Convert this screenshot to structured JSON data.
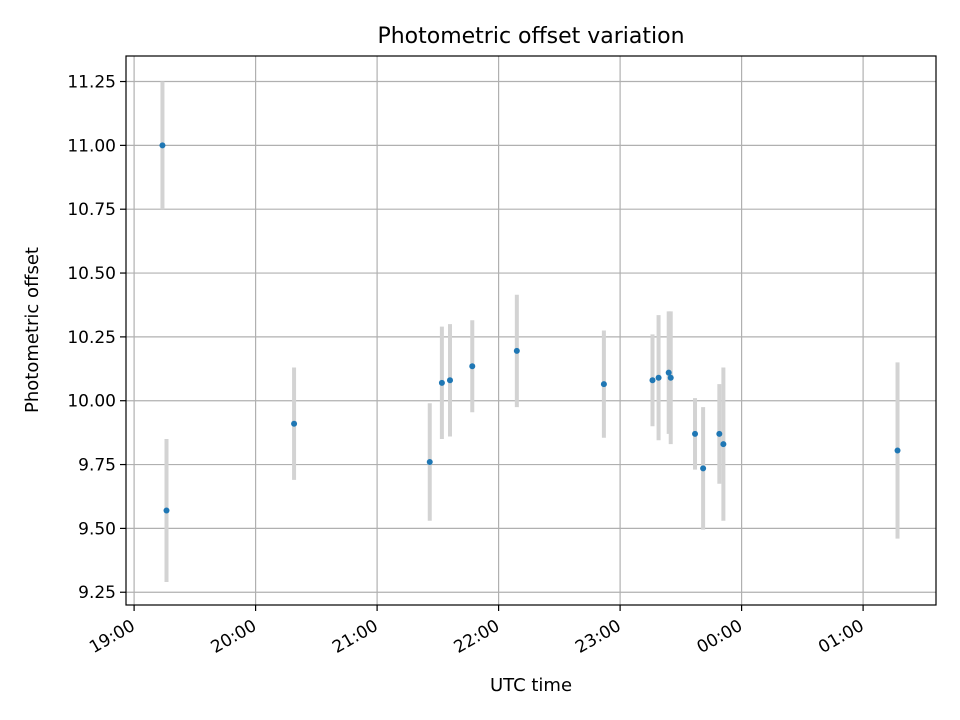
{
  "chart_data": {
    "type": "scatter",
    "title": "Photometric offset variation",
    "xlabel": "UTC time",
    "ylabel": "Photometric offset",
    "xlim": [
      "18:56",
      "01:36"
    ],
    "ylim": [
      9.2,
      11.35
    ],
    "xticks": [
      "19:00",
      "20:00",
      "21:00",
      "22:00",
      "23:00",
      "00:00",
      "01:00"
    ],
    "yticks": [
      "9.25",
      "9.50",
      "9.75",
      "10.00",
      "10.25",
      "10.50",
      "10.75",
      "11.00",
      "11.25"
    ],
    "grid": true,
    "points": [
      {
        "x": "19:14",
        "y": 11.0,
        "err": 0.25
      },
      {
        "x": "19:16",
        "y": 9.57,
        "err": 0.28
      },
      {
        "x": "20:19",
        "y": 9.91,
        "err": 0.22
      },
      {
        "x": "21:26",
        "y": 9.76,
        "err": 0.23
      },
      {
        "x": "21:32",
        "y": 10.07,
        "err": 0.22
      },
      {
        "x": "21:36",
        "y": 10.08,
        "err": 0.22
      },
      {
        "x": "21:47",
        "y": 10.135,
        "err": 0.18
      },
      {
        "x": "22:09",
        "y": 10.195,
        "err": 0.22
      },
      {
        "x": "22:52",
        "y": 10.065,
        "err": 0.21
      },
      {
        "x": "23:16",
        "y": 10.08,
        "err": 0.18
      },
      {
        "x": "23:19",
        "y": 10.09,
        "err": 0.245
      },
      {
        "x": "23:24",
        "y": 10.11,
        "err": 0.24
      },
      {
        "x": "23:25",
        "y": 10.09,
        "err": 0.26
      },
      {
        "x": "23:37",
        "y": 9.87,
        "err": 0.14
      },
      {
        "x": "23:41",
        "y": 9.735,
        "err": 0.24
      },
      {
        "x": "23:49",
        "y": 9.87,
        "err": 0.195
      },
      {
        "x": "23:51",
        "y": 9.83,
        "err": 0.3
      },
      {
        "x": "01:17",
        "y": 9.805,
        "err": 0.345
      }
    ],
    "marker_color": "#1f77b4",
    "errorbar_color": "#d3d3d3",
    "grid_color": "#b0b0b0"
  }
}
